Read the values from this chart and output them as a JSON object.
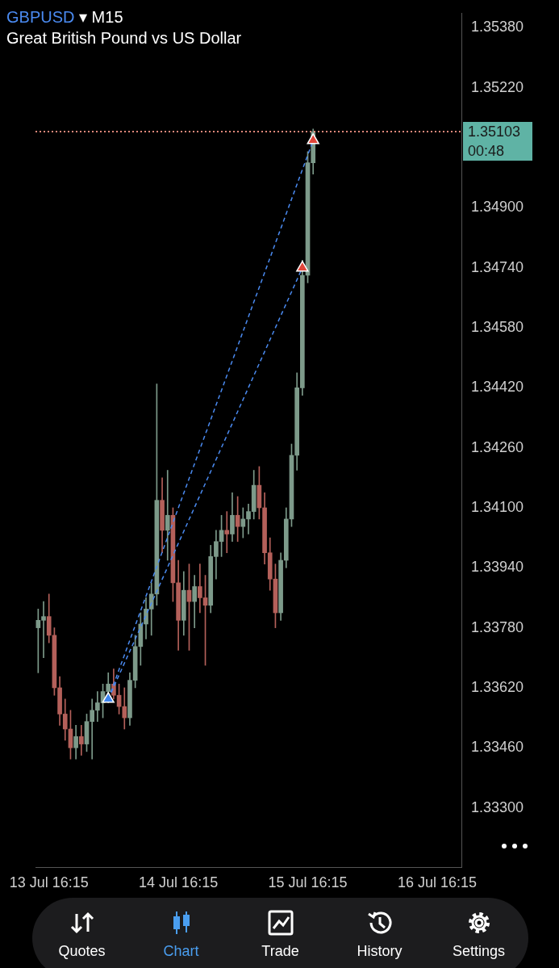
{
  "chart_data": {
    "type": "candlestick",
    "title": "GBPUSD ▾ M15",
    "subtitle": "Great British Pound vs US Dollar",
    "categories": [
      null,
      null,
      "13 Jul 16:15",
      null,
      null,
      null,
      null,
      null,
      null,
      null,
      null,
      null,
      null,
      null,
      null,
      null,
      null,
      null,
      null,
      null,
      null,
      null,
      null,
      null,
      null,
      null,
      "14 Jul 16:15",
      null,
      null,
      null,
      null,
      null,
      null,
      null,
      null,
      null,
      null,
      null,
      null,
      null,
      null,
      null,
      null,
      null,
      null,
      null,
      null,
      null,
      null,
      null,
      "15 Jul 16:15",
      null,
      null,
      null,
      null,
      null,
      null,
      null,
      null,
      null,
      null,
      null,
      null,
      null,
      null,
      null,
      null,
      null,
      null,
      null,
      null,
      null,
      null,
      null,
      "16 Jul 16:15",
      null,
      null,
      null,
      null
    ],
    "ohlc": [
      [
        1.3378,
        1.3383,
        1.3366,
        1.338
      ],
      [
        1.338,
        1.3385,
        1.337,
        1.3381
      ],
      [
        1.3381,
        1.3387,
        1.3374,
        1.3376
      ],
      [
        1.3376,
        1.3378,
        1.336,
        1.3362
      ],
      [
        1.3362,
        1.3365,
        1.3352,
        1.3355
      ],
      [
        1.3355,
        1.3359,
        1.3348,
        1.3351
      ],
      [
        1.3351,
        1.3356,
        1.3343,
        1.3346
      ],
      [
        1.3346,
        1.3352,
        1.3343,
        1.3349
      ],
      [
        1.3349,
        1.3352,
        1.3344,
        1.3347
      ],
      [
        1.3347,
        1.3355,
        1.3345,
        1.3353
      ],
      [
        1.3353,
        1.3359,
        1.3343,
        1.3356
      ],
      [
        1.3356,
        1.3361,
        1.3353,
        1.3358
      ],
      [
        1.3358,
        1.3363,
        1.3354,
        1.3361
      ],
      [
        1.3361,
        1.3366,
        1.3358,
        1.3363
      ],
      [
        1.3363,
        1.3367,
        1.3359,
        1.336
      ],
      [
        1.336,
        1.3363,
        1.3355,
        1.3357
      ],
      [
        1.3357,
        1.3362,
        1.3351,
        1.3354
      ],
      [
        1.3354,
        1.3366,
        1.3352,
        1.3364
      ],
      [
        1.3364,
        1.3376,
        1.3362,
        1.3373
      ],
      [
        1.3373,
        1.3382,
        1.3368,
        1.3379
      ],
      [
        1.3379,
        1.3386,
        1.3375,
        1.3383
      ],
      [
        1.3383,
        1.339,
        1.3376,
        1.3387
      ],
      [
        1.3387,
        1.3443,
        1.3384,
        1.3412
      ],
      [
        1.3412,
        1.3418,
        1.3398,
        1.3404
      ],
      [
        1.3404,
        1.342,
        1.3396,
        1.3408
      ],
      [
        1.3408,
        1.341,
        1.3385,
        1.339
      ],
      [
        1.339,
        1.3396,
        1.3372,
        1.338
      ],
      [
        1.338,
        1.3393,
        1.3376,
        1.3388
      ],
      [
        1.3388,
        1.3395,
        1.3372,
        1.3385
      ],
      [
        1.3385,
        1.3392,
        1.3378,
        1.3389
      ],
      [
        1.3389,
        1.3395,
        1.3382,
        1.3386
      ],
      [
        1.3386,
        1.3392,
        1.3368,
        1.3384
      ],
      [
        1.3384,
        1.34,
        1.3382,
        1.3397
      ],
      [
        1.3397,
        1.3404,
        1.3391,
        1.3401
      ],
      [
        1.3401,
        1.3408,
        1.3397,
        1.3404
      ],
      [
        1.3404,
        1.3409,
        1.3398,
        1.3403
      ],
      [
        1.3403,
        1.3414,
        1.3401,
        1.3408
      ],
      [
        1.3408,
        1.3413,
        1.3401,
        1.3405
      ],
      [
        1.3405,
        1.341,
        1.3402,
        1.3407
      ],
      [
        1.3407,
        1.3411,
        1.3403,
        1.3409
      ],
      [
        1.3409,
        1.342,
        1.3407,
        1.3416
      ],
      [
        1.3416,
        1.3421,
        1.3407,
        1.341
      ],
      [
        1.341,
        1.3414,
        1.3395,
        1.3398
      ],
      [
        1.3398,
        1.3402,
        1.3388,
        1.3391
      ],
      [
        1.3391,
        1.3395,
        1.3378,
        1.3382
      ],
      [
        1.3382,
        1.3398,
        1.338,
        1.3396
      ],
      [
        1.3396,
        1.341,
        1.3394,
        1.3407
      ],
      [
        1.3407,
        1.3427,
        1.3405,
        1.3424
      ],
      [
        1.3424,
        1.3446,
        1.342,
        1.3442
      ],
      [
        1.3442,
        1.3476,
        1.344,
        1.3472
      ],
      [
        1.3472,
        1.3505,
        1.347,
        1.3502
      ],
      [
        1.3502,
        1.3511,
        1.3499,
        1.35103
      ],
      null,
      null,
      null,
      null,
      null,
      null,
      null,
      null,
      null,
      null,
      null,
      null,
      null,
      null,
      null,
      null,
      null,
      null,
      null,
      null,
      null,
      null,
      null,
      null,
      null,
      null,
      null
    ],
    "series": [
      {
        "type": "line",
        "values": [
          null,
          null,
          null,
          null,
          null,
          null,
          null,
          null,
          null,
          null,
          null,
          null,
          null,
          1.3359,
          null,
          null,
          null,
          null,
          null,
          null,
          null,
          null,
          null,
          null,
          null,
          null,
          null,
          null,
          null,
          null,
          null,
          null,
          null,
          null,
          null,
          null,
          null,
          null,
          null,
          null,
          null,
          null,
          null,
          null,
          null,
          null,
          null,
          null,
          null,
          null,
          null,
          1.3508,
          null,
          null,
          null,
          null,
          null,
          null,
          null,
          null,
          null,
          null,
          null,
          null,
          null,
          null,
          null,
          null,
          null,
          null,
          null,
          null,
          null,
          null,
          null,
          null,
          null,
          null,
          null
        ],
        "color": "#4a8af0",
        "line_style": "dashed"
      },
      {
        "type": "line",
        "values": [
          null,
          null,
          null,
          null,
          null,
          null,
          null,
          null,
          null,
          null,
          null,
          null,
          null,
          1.3359,
          null,
          null,
          null,
          null,
          null,
          null,
          null,
          null,
          null,
          null,
          null,
          null,
          null,
          null,
          null,
          null,
          null,
          null,
          null,
          null,
          null,
          null,
          null,
          null,
          null,
          null,
          null,
          null,
          null,
          null,
          null,
          null,
          null,
          null,
          null,
          1.3474,
          null,
          null,
          null,
          null,
          null,
          null,
          null,
          null,
          null,
          null,
          null,
          null,
          null,
          null,
          null,
          null,
          null,
          null,
          null,
          null,
          null,
          null,
          null,
          null,
          null,
          null,
          null,
          null,
          null
        ],
        "color": "#4a8af0",
        "line_style": "dashed"
      },
      {
        "type": "scatter",
        "values": [
          null,
          null,
          null,
          null,
          null,
          null,
          null,
          null,
          null,
          null,
          null,
          null,
          null,
          1.3359,
          null,
          null,
          null,
          null,
          null,
          null,
          null,
          null,
          null,
          null,
          null,
          null,
          null,
          null,
          null,
          null,
          null,
          null,
          null,
          null,
          null,
          null,
          null,
          null,
          null,
          null,
          null,
          null,
          null,
          null,
          null,
          null,
          null,
          null,
          null,
          null,
          null,
          null,
          null,
          null,
          null,
          null,
          null,
          null,
          null,
          null,
          null,
          null,
          null,
          null,
          null,
          null,
          null,
          null,
          null,
          null,
          null,
          null,
          null,
          null,
          null,
          null,
          null,
          null,
          null
        ],
        "color": "#3d86f0",
        "marker": "triangle"
      },
      {
        "type": "scatter",
        "values": [
          null,
          null,
          null,
          null,
          null,
          null,
          null,
          null,
          null,
          null,
          null,
          null,
          null,
          null,
          null,
          null,
          null,
          null,
          null,
          null,
          null,
          null,
          null,
          null,
          null,
          null,
          null,
          null,
          null,
          null,
          null,
          null,
          null,
          null,
          null,
          null,
          null,
          null,
          null,
          null,
          null,
          null,
          null,
          null,
          null,
          null,
          null,
          null,
          null,
          1.3474,
          null,
          1.3508,
          null,
          null,
          null,
          null,
          null,
          null,
          null,
          null,
          null,
          null,
          null,
          null,
          null,
          null,
          null,
          null,
          null,
          null,
          null,
          null,
          null,
          null,
          null,
          null,
          null,
          null,
          null
        ],
        "color": "#e0463a",
        "marker": "triangle"
      }
    ],
    "ref_lines": [
      {
        "axis": "y",
        "value": 1.35103,
        "label": "1.35103",
        "color": "#e0887a",
        "line_style": "dotted"
      }
    ],
    "ylim": [
      1.33141,
      1.35418
    ],
    "yticks": [
      {
        "value": 1.333,
        "label": "1.33300"
      },
      {
        "value": 1.3346,
        "label": "1.33460"
      },
      {
        "value": 1.3362,
        "label": "1.33620"
      },
      {
        "value": 1.3378,
        "label": "1.33780"
      },
      {
        "value": 1.3394,
        "label": "1.33940"
      },
      {
        "value": 1.341,
        "label": "1.34100"
      },
      {
        "value": 1.3426,
        "label": "1.34260"
      },
      {
        "value": 1.3442,
        "label": "1.34420"
      },
      {
        "value": 1.3458,
        "label": "1.34580"
      },
      {
        "value": 1.3474,
        "label": "1.34740"
      },
      {
        "value": 1.349,
        "label": "1.34900"
      },
      {
        "value": 1.3522,
        "label": "1.35220"
      },
      {
        "value": 1.3538,
        "label": "1.35380"
      }
    ],
    "annotations": [
      "00:48",
      "Quotes",
      "Chart",
      "Trade",
      "History",
      "Settings"
    ],
    "grid": false,
    "legend": false
  }
}
